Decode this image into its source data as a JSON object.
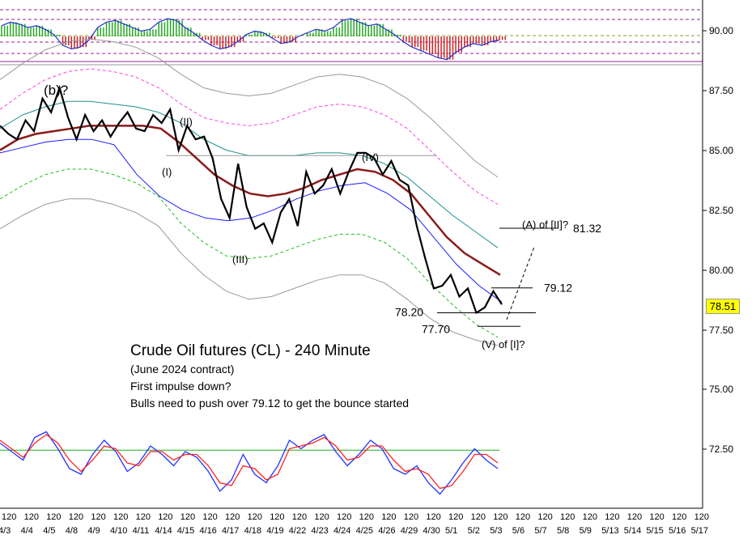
{
  "chart_data": {
    "type": "line",
    "instrument": "Crude Oil futures (CL) - 240 Minute",
    "contract": "(June 2024 contract)",
    "notes": [
      "First impulse down?",
      "Bulls need to push over 79.12 to get the bounce started"
    ],
    "y_axis": {
      "ylim": [
        69.5,
        92.5
      ],
      "ticks": [
        "90.00",
        "87.50",
        "85.00",
        "82.50",
        "80.00",
        "77.50",
        "75.00",
        "72.50"
      ],
      "tick_values": [
        90,
        87.5,
        85,
        82.5,
        80,
        77.5,
        75,
        72.5
      ]
    },
    "current_price": "78.51",
    "x_axis": {
      "hour_label": "120",
      "date_labels": [
        "4/3",
        "4/4",
        "4/5",
        "4/8",
        "4/9",
        "4/10",
        "4/11",
        "4/14",
        "4/15",
        "4/16",
        "4/17",
        "4/18",
        "4/19",
        "4/22",
        "4/23",
        "4/24",
        "4/25",
        "4/26",
        "4/29",
        "4/30",
        "5/1",
        "5/2",
        "5/3",
        "5/6",
        "5/7",
        "5/8",
        "5/9",
        "5/13",
        "5/14",
        "5/15",
        "5/16",
        "5/17"
      ]
    },
    "price_series": {
      "name": "",
      "values": [
        85.1,
        84.8,
        84.6,
        85.3,
        84.9,
        86.1,
        85.6,
        86.5,
        85.4,
        84.6,
        85.5,
        84.9,
        85.3,
        84.7,
        85.2,
        85.6,
        85.0,
        84.9,
        85.5,
        85.2,
        85.7,
        84.2,
        85.1,
        84.6,
        84.7,
        83.9,
        82.4,
        81.7,
        83.7,
        82.1,
        81.3,
        81.5,
        80.8,
        81.9,
        82.4,
        81.4,
        83.4,
        82.6,
        82.9,
        83.5,
        82.6,
        83.4,
        84.1,
        84.1,
        83.9,
        83.3,
        83.8,
        83.1,
        82.9,
        81.4,
        80.2,
        79.1,
        79.2,
        79.6,
        78.8,
        79.1,
        78.2,
        78.4,
        79.0,
        78.51
      ]
    },
    "overlays": [
      {
        "label": "moving-average-brown",
        "values": [
          84.2,
          84.6,
          84.8,
          84.9,
          85.0,
          85.1,
          85.1,
          85.1,
          85.1,
          85.0,
          84.5,
          83.9,
          83.3,
          82.9,
          82.6,
          82.5,
          82.6,
          82.8,
          83.1,
          83.3,
          83.5,
          83.4,
          83.1,
          82.6,
          81.8,
          81.0,
          80.4,
          80.0,
          79.6
        ]
      },
      {
        "label": "band-upper-teal",
        "values": [
          85.0,
          85.5,
          85.8,
          86.0,
          86.0,
          85.9,
          85.8,
          85.6,
          85.2,
          84.6,
          84.2,
          84.0,
          84.0,
          84.0,
          84.1,
          84.1,
          84.0,
          83.7,
          83.2,
          82.5,
          81.8,
          81.2,
          80.6
        ]
      },
      {
        "label": "band-lower-blue",
        "values": [
          84.1,
          84.3,
          84.5,
          84.6,
          84.6,
          84.4,
          83.3,
          82.5,
          82.0,
          81.7,
          81.6,
          81.7,
          82.0,
          82.4,
          82.7,
          82.9,
          83.0,
          82.6,
          82.0,
          81.0,
          80.0,
          79.2,
          78.6
        ]
      },
      {
        "label": "envelope-upper-gray",
        "values": [
          86.8,
          87.4,
          87.9,
          88.2,
          88.3,
          88.2,
          88.0,
          87.6,
          87.0,
          86.5,
          86.3,
          86.2,
          86.3,
          86.6,
          86.9,
          87.0,
          86.9,
          86.6,
          86.1,
          85.4,
          84.6,
          83.8,
          83.2
        ]
      },
      {
        "label": "envelope-upper-pink",
        "values": [
          85.7,
          86.3,
          86.8,
          87.1,
          87.2,
          87.1,
          86.9,
          86.5,
          85.9,
          85.4,
          85.2,
          85.1,
          85.2,
          85.5,
          85.8,
          85.9,
          85.8,
          85.5,
          85.0,
          84.2,
          83.4,
          82.7,
          82.2
        ]
      },
      {
        "label": "envelope-lower-green",
        "values": [
          82.4,
          82.9,
          83.3,
          83.5,
          83.5,
          83.3,
          83.0,
          82.5,
          81.5,
          80.8,
          80.3,
          80.2,
          80.3,
          80.6,
          80.9,
          81.1,
          81.1,
          80.8,
          80.2,
          79.3,
          78.5,
          77.8,
          77.3
        ]
      },
      {
        "label": "envelope-lower-gray",
        "values": [
          81.3,
          81.8,
          82.2,
          82.4,
          82.4,
          82.2,
          81.9,
          81.4,
          80.4,
          79.6,
          79.0,
          78.7,
          78.8,
          79.1,
          79.4,
          79.6,
          79.6,
          79.3,
          78.7,
          78.0,
          77.5,
          77.2,
          77.0
        ]
      }
    ],
    "reference_line": {
      "value": 84.0,
      "label": ""
    },
    "wave_labels": [
      "(b)?",
      "(II)",
      "(I)",
      "(III)",
      "(IV)",
      "(A) of [II]?",
      "(V) of [I]?"
    ],
    "levels": [
      {
        "label": "81.32",
        "value": 81.32
      },
      {
        "label": "79.12",
        "value": 79.12
      },
      {
        "label": "78.20",
        "value": 78.2
      },
      {
        "label": "77.70",
        "value": 77.7
      }
    ],
    "top_oscillator": {
      "values": [
        0.6,
        0.8,
        0.7,
        0.5,
        0.6,
        0.4,
        0.1,
        -0.5,
        -0.7,
        -0.6,
        -0.2,
        0.5,
        0.8,
        0.9,
        0.7,
        0.5,
        0.3,
        0.4,
        0.8,
        1.0,
        0.9,
        0.5,
        0.2,
        -0.2,
        -0.5,
        -0.7,
        -0.6,
        -0.3,
        0.1,
        0.3,
        0.2,
        -0.1,
        -0.4,
        -0.3,
        0.0,
        0.2,
        0.4,
        0.3,
        0.5,
        0.9,
        1.0,
        0.8,
        0.6,
        0.7,
        0.4,
        0.1,
        -0.3,
        -0.6,
        -0.8,
        -1.0,
        -1.2,
        -1.3,
        -0.9,
        -0.6,
        -0.4,
        -0.5,
        -0.3,
        -0.2
      ]
    },
    "bottom_oscillator": {
      "series": [
        {
          "label": "fast-blue",
          "values": [
            0.5,
            0.2,
            -0.1,
            0.7,
            0.9,
            0.3,
            -0.4,
            -0.6,
            0.1,
            0.6,
            0.2,
            -0.5,
            -0.2,
            0.4,
            0.1,
            -0.3,
            0.2,
            0.0,
            -0.5,
            -1.2,
            -0.8,
            0.1,
            -0.6,
            -0.9,
            -0.3,
            0.6,
            0.3,
            0.6,
            0.8,
            0.2,
            -0.3,
            0.1,
            0.6,
            0.3,
            -0.4,
            -0.6,
            -0.3,
            -0.9,
            -1.3,
            -0.8,
            -0.2,
            0.3,
            -0.1,
            -0.4
          ]
        },
        {
          "label": "slow-red",
          "values": [
            0.6,
            0.3,
            0.0,
            0.5,
            0.8,
            0.5,
            -0.1,
            -0.5,
            -0.1,
            0.4,
            0.3,
            -0.2,
            -0.3,
            0.2,
            0.2,
            -0.1,
            0.1,
            0.1,
            -0.3,
            -0.9,
            -1.0,
            -0.3,
            -0.4,
            -0.8,
            -0.6,
            0.3,
            0.4,
            0.5,
            0.7,
            0.4,
            -0.1,
            0.0,
            0.4,
            0.4,
            -0.1,
            -0.5,
            -0.4,
            -0.6,
            -1.1,
            -1.0,
            -0.5,
            0.1,
            0.1,
            -0.2
          ]
        }
      ],
      "signal_level": 0.25
    }
  },
  "colors": {
    "price": "#000000",
    "ma": "#8b1a1a",
    "teal": "#1f8f8f",
    "blue": "#1a1aff",
    "gray": "#999999",
    "pink": "#ff44dd",
    "green": "#22bb22",
    "badge": "#ffff00"
  }
}
